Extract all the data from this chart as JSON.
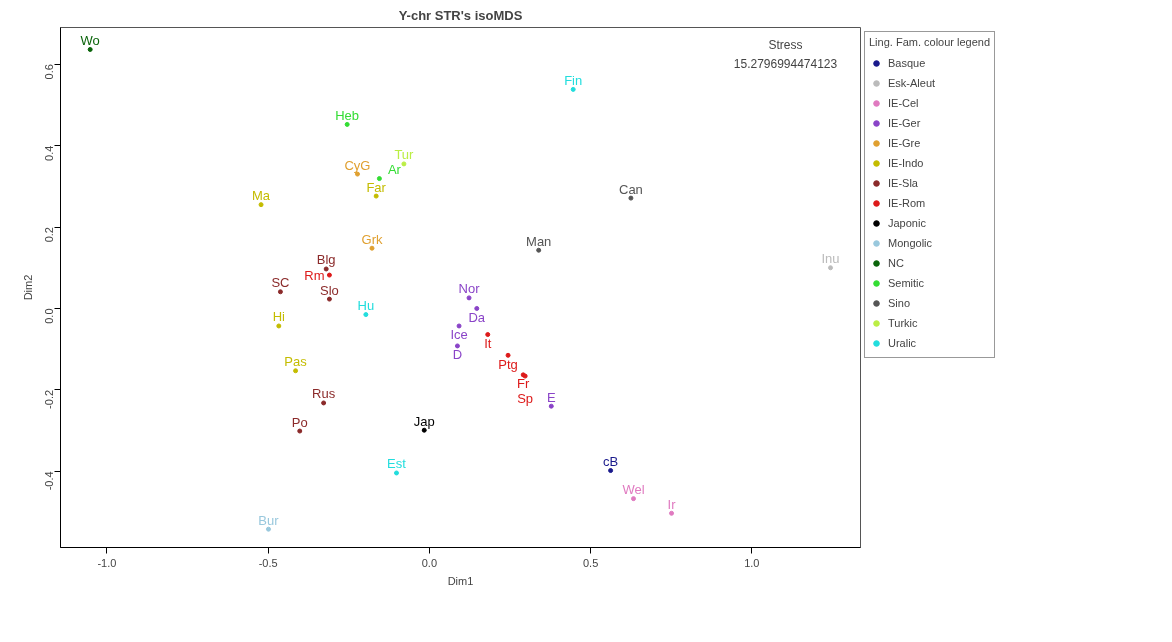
{
  "chart_data": {
    "type": "scatter",
    "title": "Y-chr STR's isoMDS",
    "xlabel": "Dim1",
    "ylabel": "Dim2",
    "legend_title": "Ling. Fam. colour legend",
    "legend": "right",
    "grid": false,
    "marker": "circle",
    "xlim": [
      -1.144,
      1.337
    ],
    "ylim": [
      -0.587,
      0.69
    ],
    "xticks": [
      {
        "value": -1.0,
        "label": "-1.0"
      },
      {
        "value": -0.5,
        "label": "-0.5"
      },
      {
        "value": 0.0,
        "label": "0.0"
      },
      {
        "value": 0.5,
        "label": "0.5"
      },
      {
        "value": 1.0,
        "label": "1.0"
      }
    ],
    "yticks": [
      {
        "value": -0.4,
        "label": "-0.4"
      },
      {
        "value": -0.2,
        "label": "-0.2"
      },
      {
        "value": 0.0,
        "label": "0.0"
      },
      {
        "value": 0.2,
        "label": "0.2"
      },
      {
        "value": 0.4,
        "label": "0.4"
      },
      {
        "value": 0.6,
        "label": "0.6"
      }
    ],
    "annotations": [
      "Stress",
      "15.2796994474123"
    ],
    "series": [
      {
        "name": "Basque",
        "color": "#1a1a8c",
        "x": [
          0.562
        ],
        "values": [
          -0.398
        ],
        "value_labels": [
          "cB"
        ]
      },
      {
        "name": "Esk-Aleut",
        "color": "#bbbbbb",
        "x": [
          1.244
        ],
        "values": [
          0.1
        ],
        "value_labels": [
          "Inu"
        ]
      },
      {
        "name": "IE-Cel",
        "color": "#e07ac0",
        "x": [
          0.633,
          0.751
        ],
        "values": [
          -0.467,
          -0.503
        ],
        "value_labels": [
          "Wel",
          "Ir"
        ]
      },
      {
        "name": "IE-Ger",
        "color": "#8a44c8",
        "x": [
          0.123,
          0.147,
          0.092,
          0.087,
          0.378
        ],
        "values": [
          0.026,
          0.0,
          -0.043,
          -0.092,
          -0.24
        ],
        "value_labels": [
          "Nor",
          "Da",
          "Ice",
          "D",
          "E"
        ]
      },
      {
        "name": "IE-Gre",
        "color": "#e0a030",
        "x": [
          -0.223,
          -0.178
        ],
        "values": [
          0.33,
          0.148
        ],
        "value_labels": [
          "CyG",
          "Grk"
        ]
      },
      {
        "name": "IE-Indo",
        "color": "#c4bc00",
        "x": [
          -0.522,
          -0.165,
          -0.467,
          -0.415
        ],
        "values": [
          0.255,
          0.276,
          -0.043,
          -0.153
        ],
        "value_labels": [
          "Ma",
          "Far",
          "Hi",
          "Pas"
        ]
      },
      {
        "name": "IE-Sla",
        "color": "#8b2a2a",
        "x": [
          -0.32,
          -0.462,
          -0.31,
          -0.328,
          -0.402
        ],
        "values": [
          0.097,
          0.041,
          0.023,
          -0.232,
          -0.301
        ],
        "value_labels": [
          "Blg",
          "SC",
          "Slo",
          "Rus",
          "Po"
        ]
      },
      {
        "name": "IE-Rom",
        "color": "#dd1a1a",
        "x": [
          -0.31,
          0.181,
          0.244,
          0.291,
          0.297
        ],
        "values": [
          0.082,
          -0.064,
          -0.115,
          -0.163,
          -0.166
        ],
        "value_labels": [
          "Rm",
          "It",
          "Ptg",
          "Fr",
          "Sp"
        ]
      },
      {
        "name": "Japonic",
        "color": "#000000",
        "x": [
          -0.016
        ],
        "values": [
          -0.299
        ],
        "value_labels": [
          "Jap"
        ]
      },
      {
        "name": "Mongolic",
        "color": "#99c8dd",
        "x": [
          -0.499
        ],
        "values": [
          -0.542
        ],
        "value_labels": [
          "Bur"
        ]
      },
      {
        "name": "NC",
        "color": "#0a640a",
        "x": [
          -1.052
        ],
        "values": [
          0.636
        ],
        "value_labels": [
          "Wo"
        ]
      },
      {
        "name": "Semitic",
        "color": "#33dd33",
        "x": [
          -0.255,
          -0.155
        ],
        "values": [
          0.452,
          0.319
        ],
        "value_labels": [
          "Heb",
          "Ar"
        ]
      },
      {
        "name": "Sino",
        "color": "#555555",
        "x": [
          0.625,
          0.339
        ],
        "values": [
          0.271,
          0.143
        ],
        "value_labels": [
          "Can",
          "Man"
        ]
      },
      {
        "name": "Turkic",
        "color": "#bbee44",
        "x": [
          -0.079
        ],
        "values": [
          0.355
        ],
        "value_labels": [
          "Tur"
        ]
      },
      {
        "name": "Uralic",
        "color": "#22dddd",
        "x": [
          0.446,
          -0.197,
          -0.102
        ],
        "values": [
          0.538,
          -0.015,
          -0.404
        ],
        "value_labels": [
          "Fin",
          "Hu",
          "Est"
        ]
      }
    ]
  }
}
